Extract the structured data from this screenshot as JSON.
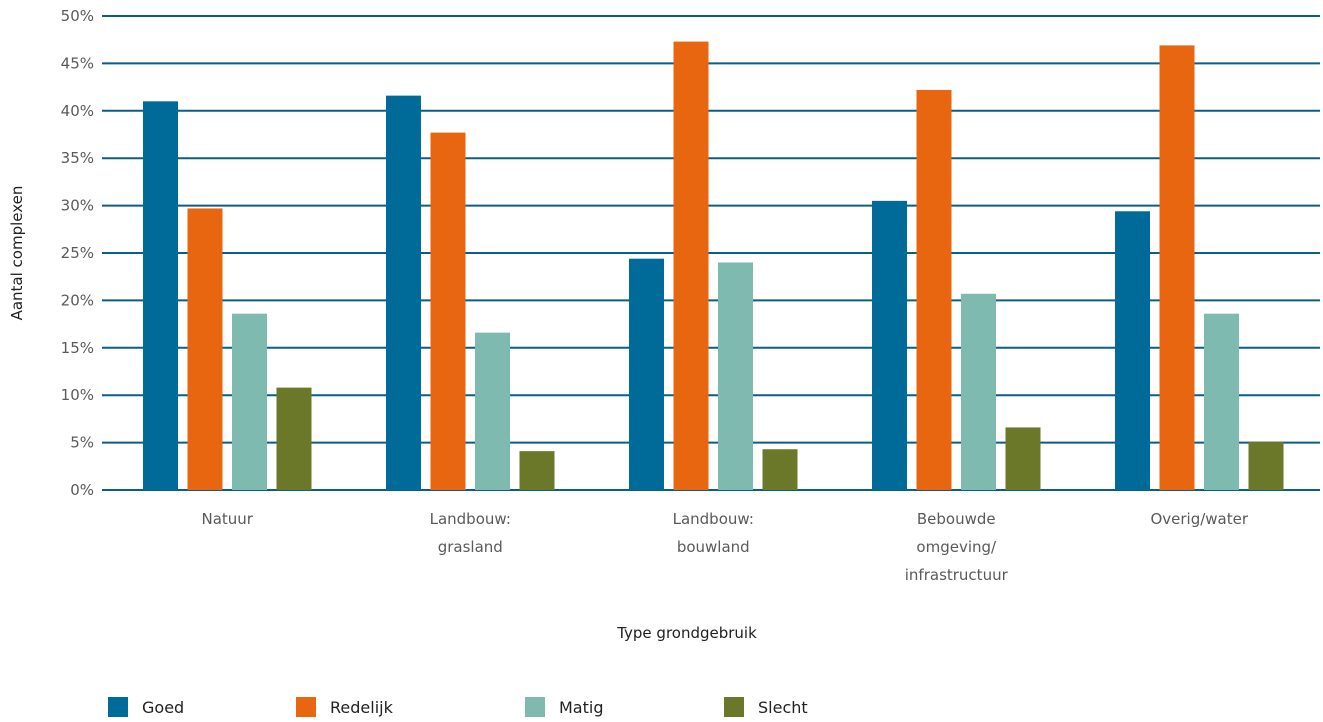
{
  "chart_data": {
    "type": "bar",
    "title": "",
    "xlabel": "Type grondgebruik",
    "ylabel": "Aantal complexen",
    "ylim": [
      0,
      50
    ],
    "ytick_step": 5,
    "ytick_suffix": "%",
    "grid": true,
    "legend_position": "bottom",
    "categories": [
      [
        "Natuur"
      ],
      [
        "Landbouw:",
        "grasland"
      ],
      [
        "Landbouw:",
        "bouwland"
      ],
      [
        "Bebouwde",
        "omgeving/",
        "infrastructuur"
      ],
      [
        "Overig/water"
      ]
    ],
    "series": [
      {
        "name": "Goed",
        "color": "#006a99",
        "values": [
          41.0,
          41.6,
          24.4,
          30.5,
          29.4
        ]
      },
      {
        "name": "Redelijk",
        "color": "#e8660f",
        "values": [
          29.7,
          37.7,
          47.3,
          42.2,
          46.9
        ]
      },
      {
        "name": "Matig",
        "color": "#7fbab0",
        "values": [
          18.6,
          16.6,
          24.0,
          20.7,
          18.6
        ]
      },
      {
        "name": "Slecht",
        "color": "#6b782a",
        "values": [
          10.8,
          4.1,
          4.3,
          6.6,
          5.1
        ]
      }
    ],
    "gridline_color": "#0a5e86"
  }
}
